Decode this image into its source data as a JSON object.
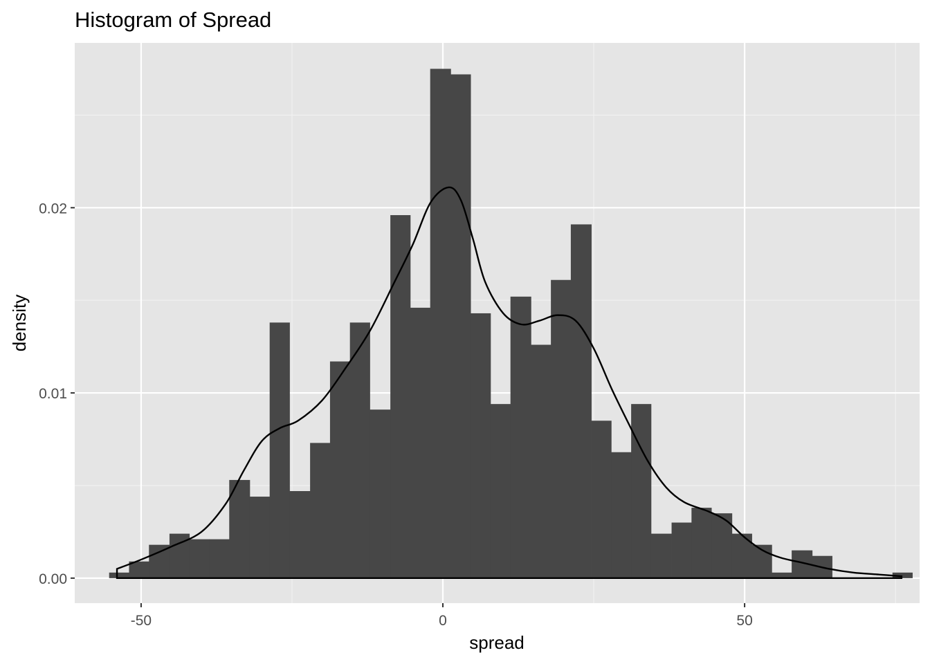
{
  "chart_data": {
    "type": "histogram",
    "title": "Histogram of Spread",
    "xlabel": "spread",
    "ylabel": "density",
    "xlim": [
      -61,
      79
    ],
    "ylim": [
      -0.00135,
      0.0289
    ],
    "x_ticks": [
      {
        "value": -50,
        "label": "-50"
      },
      {
        "value": 0,
        "label": "0"
      },
      {
        "value": 50,
        "label": "50"
      }
    ],
    "x_minor_ticks": [
      -25,
      25,
      75
    ],
    "y_ticks": [
      {
        "value": 0.0,
        "label": "0.00"
      },
      {
        "value": 0.01,
        "label": "0.01"
      },
      {
        "value": 0.02,
        "label": "0.02"
      }
    ],
    "y_minor_ticks": [
      0.005,
      0.015,
      0.025
    ],
    "grid": true,
    "legend": "none",
    "bars": {
      "fill": "#474747",
      "items": [
        {
          "x0": -55.3,
          "x1": -52.0,
          "density": 0.0003
        },
        {
          "x0": -52.0,
          "x1": -48.7,
          "density": 0.0009
        },
        {
          "x0": -48.7,
          "x1": -45.3,
          "density": 0.0018
        },
        {
          "x0": -45.3,
          "x1": -42.0,
          "density": 0.0024
        },
        {
          "x0": -42.0,
          "x1": -38.7,
          "density": 0.0021
        },
        {
          "x0": -38.7,
          "x1": -35.4,
          "density": 0.0021
        },
        {
          "x0": -35.4,
          "x1": -32.0,
          "density": 0.0053
        },
        {
          "x0": -32.0,
          "x1": -28.7,
          "density": 0.0044
        },
        {
          "x0": -28.7,
          "x1": -25.4,
          "density": 0.0138
        },
        {
          "x0": -25.4,
          "x1": -22.0,
          "density": 0.0047
        },
        {
          "x0": -22.0,
          "x1": -18.7,
          "density": 0.0073
        },
        {
          "x0": -18.7,
          "x1": -15.4,
          "density": 0.0117
        },
        {
          "x0": -15.4,
          "x1": -12.1,
          "density": 0.0138
        },
        {
          "x0": -12.1,
          "x1": -8.7,
          "density": 0.0091
        },
        {
          "x0": -8.7,
          "x1": -5.4,
          "density": 0.0196
        },
        {
          "x0": -5.4,
          "x1": -2.1,
          "density": 0.0146
        },
        {
          "x0": -2.1,
          "x1": 1.3,
          "density": 0.0275
        },
        {
          "x0": 1.3,
          "x1": 4.6,
          "density": 0.0272
        },
        {
          "x0": 4.6,
          "x1": 7.9,
          "density": 0.0143
        },
        {
          "x0": 7.9,
          "x1": 11.2,
          "density": 0.0094
        },
        {
          "x0": 11.2,
          "x1": 14.6,
          "density": 0.0152
        },
        {
          "x0": 14.6,
          "x1": 17.9,
          "density": 0.0126
        },
        {
          "x0": 17.9,
          "x1": 21.2,
          "density": 0.0161
        },
        {
          "x0": 21.2,
          "x1": 24.6,
          "density": 0.0191
        },
        {
          "x0": 24.6,
          "x1": 27.9,
          "density": 0.0085
        },
        {
          "x0": 27.9,
          "x1": 31.2,
          "density": 0.0068
        },
        {
          "x0": 31.2,
          "x1": 34.5,
          "density": 0.0094
        },
        {
          "x0": 34.5,
          "x1": 37.9,
          "density": 0.0024
        },
        {
          "x0": 37.9,
          "x1": 41.2,
          "density": 0.003
        },
        {
          "x0": 41.2,
          "x1": 44.5,
          "density": 0.0038
        },
        {
          "x0": 44.5,
          "x1": 47.9,
          "density": 0.0035
        },
        {
          "x0": 47.9,
          "x1": 51.2,
          "density": 0.0024
        },
        {
          "x0": 51.2,
          "x1": 54.5,
          "density": 0.0018
        },
        {
          "x0": 54.5,
          "x1": 57.8,
          "density": 0.0003
        },
        {
          "x0": 57.8,
          "x1": 61.2,
          "density": 0.0015
        },
        {
          "x0": 61.2,
          "x1": 64.5,
          "density": 0.0012
        },
        {
          "x0": 64.5,
          "x1": 67.8,
          "density": 0.0
        },
        {
          "x0": 67.8,
          "x1": 71.2,
          "density": 0.0
        },
        {
          "x0": 71.2,
          "x1": 74.5,
          "density": 0.0
        },
        {
          "x0": 74.5,
          "x1": 77.8,
          "density": 0.0003
        }
      ]
    },
    "density_curve": {
      "color": "#000000",
      "points": [
        [
          -54,
          0.0005
        ],
        [
          -50,
          0.001
        ],
        [
          -45,
          0.0017
        ],
        [
          -40,
          0.0025
        ],
        [
          -36,
          0.004
        ],
        [
          -33,
          0.0058
        ],
        [
          -30,
          0.0074
        ],
        [
          -27,
          0.0081
        ],
        [
          -24,
          0.0085
        ],
        [
          -20,
          0.0096
        ],
        [
          -16,
          0.0114
        ],
        [
          -12,
          0.0134
        ],
        [
          -8,
          0.016
        ],
        [
          -5,
          0.018
        ],
        [
          -2,
          0.0203
        ],
        [
          1,
          0.0211
        ],
        [
          3,
          0.0204
        ],
        [
          5,
          0.0183
        ],
        [
          7,
          0.016
        ],
        [
          10,
          0.0143
        ],
        [
          13,
          0.0137
        ],
        [
          16,
          0.0139
        ],
        [
          19,
          0.0142
        ],
        [
          22,
          0.0139
        ],
        [
          25,
          0.0124
        ],
        [
          28,
          0.0102
        ],
        [
          31,
          0.0082
        ],
        [
          34,
          0.0063
        ],
        [
          37,
          0.0049
        ],
        [
          40,
          0.0041
        ],
        [
          44,
          0.0036
        ],
        [
          47,
          0.0031
        ],
        [
          50,
          0.0022
        ],
        [
          53,
          0.0015
        ],
        [
          56,
          0.0011
        ],
        [
          60,
          0.0008
        ],
        [
          64,
          0.0005
        ],
        [
          68,
          0.0003
        ],
        [
          72,
          0.0002
        ],
        [
          76,
          0.0001
        ]
      ]
    },
    "colors": {
      "panel_background": "#e5e5e5",
      "grid_major": "#ffffff",
      "grid_minor": "#f2f2f2",
      "tick_text": "#4d4d4d"
    }
  }
}
